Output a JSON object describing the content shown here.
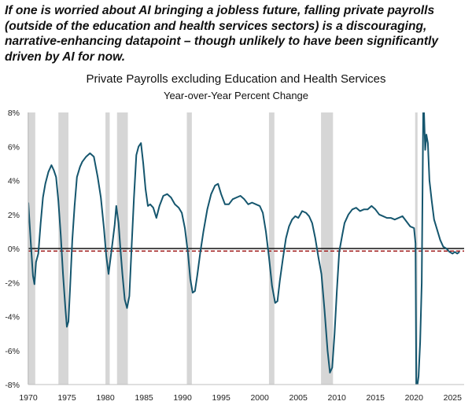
{
  "headline": "If one is worried about AI bringing a jobless future, falling private payrolls (outside of the education and health services sectors) is a discouraging, narrative-enhancing datapoint – though unlikely to have been significantly driven by AI for now.",
  "chart_data": {
    "type": "line",
    "title": "Private Payrolls excluding Education and Health Services",
    "subtitle": "Year-over-Year Percent Change",
    "xlabel": "",
    "ylabel": "",
    "xlim": [
      1970,
      2026.5
    ],
    "ylim": [
      -8,
      8
    ],
    "yticks": [
      8,
      6,
      4,
      2,
      0,
      -2,
      -4,
      -6,
      -8
    ],
    "ytick_labels": [
      "8%",
      "6%",
      "4%",
      "2%",
      "0%",
      "-2%",
      "-4%",
      "-6%",
      "-8%"
    ],
    "xticks": [
      1970,
      1975,
      1980,
      1985,
      1990,
      1995,
      2000,
      2005,
      2010,
      2015,
      2020,
      2025
    ],
    "xtick_labels": [
      "1970",
      "1975",
      "1980",
      "1985",
      "1990",
      "1995",
      "2000",
      "2005",
      "2010",
      "2015",
      "2020",
      "2025"
    ],
    "recessions": [
      [
        1969.9,
        1970.9
      ],
      [
        1973.9,
        1975.2
      ],
      [
        1980.0,
        1980.55
      ],
      [
        1981.5,
        1982.9
      ],
      [
        1990.55,
        1991.2
      ],
      [
        2001.2,
        2001.9
      ],
      [
        2007.95,
        2009.5
      ],
      [
        2020.15,
        2020.4
      ]
    ],
    "reference_line": {
      "y": -0.15,
      "style": "dashed",
      "color": "#a01c1c"
    },
    "series": [
      {
        "name": "Private payrolls ex education & health services, YoY %",
        "color": "#15566e",
        "x": [
          1970.0,
          1970.3,
          1970.6,
          1970.8,
          1971.0,
          1971.3,
          1971.6,
          1971.9,
          1972.2,
          1972.6,
          1973.0,
          1973.3,
          1973.6,
          1973.9,
          1974.2,
          1974.5,
          1974.8,
          1975.0,
          1975.2,
          1975.4,
          1975.7,
          1976.0,
          1976.3,
          1976.7,
          1977.0,
          1977.5,
          1978.0,
          1978.5,
          1979.0,
          1979.4,
          1979.8,
          1980.1,
          1980.4,
          1980.6,
          1980.9,
          1981.2,
          1981.4,
          1981.7,
          1981.9,
          1982.2,
          1982.5,
          1982.8,
          1983.1,
          1983.4,
          1983.7,
          1984.0,
          1984.3,
          1984.6,
          1984.9,
          1985.2,
          1985.5,
          1985.8,
          1986.2,
          1986.6,
          1987.0,
          1987.5,
          1988.0,
          1988.5,
          1989.0,
          1989.5,
          1989.9,
          1990.3,
          1990.7,
          1991.0,
          1991.3,
          1991.6,
          1991.9,
          1992.3,
          1992.7,
          1993.2,
          1993.7,
          1994.2,
          1994.6,
          1995.0,
          1995.5,
          1996.0,
          1996.5,
          1997.0,
          1997.5,
          1998.0,
          1998.5,
          1999.0,
          1999.5,
          2000.0,
          2000.4,
          2000.8,
          2001.2,
          2001.6,
          2002.0,
          2002.3,
          2002.6,
          2003.0,
          2003.4,
          2003.8,
          2004.2,
          2004.6,
          2005.0,
          2005.5,
          2006.0,
          2006.4,
          2006.8,
          2007.2,
          2007.6,
          2008.0,
          2008.4,
          2008.8,
          2009.1,
          2009.4,
          2009.7,
          2010.0,
          2010.3,
          2010.7,
          2011.0,
          2011.5,
          2012.0,
          2012.5,
          2013.0,
          2013.5,
          2014.0,
          2014.5,
          2015.0,
          2015.5,
          2016.0,
          2016.5,
          2017.0,
          2017.5,
          2018.0,
          2018.5,
          2019.0,
          2019.5,
          2020.0,
          2020.2,
          2020.3,
          2020.45,
          2020.6,
          2020.8,
          2021.0,
          2021.2,
          2021.3,
          2021.45,
          2021.6,
          2021.8,
          2022.0,
          2022.3,
          2022.6,
          2023.0,
          2023.4,
          2023.8,
          2024.2,
          2024.6,
          2025.0,
          2025.3,
          2025.6,
          2025.9
        ],
        "values": [
          2.7,
          0.5,
          -1.6,
          -2.1,
          -0.8,
          -0.3,
          1.5,
          3.0,
          3.8,
          4.5,
          4.9,
          4.6,
          4.2,
          2.8,
          0.8,
          -1.5,
          -3.5,
          -4.6,
          -4.3,
          -2.5,
          0.5,
          2.5,
          4.2,
          4.8,
          5.1,
          5.4,
          5.6,
          5.4,
          4.2,
          3.0,
          1.2,
          -0.4,
          -1.5,
          -0.8,
          0.3,
          1.4,
          2.5,
          1.5,
          0.2,
          -1.5,
          -3.0,
          -3.5,
          -2.8,
          0.2,
          3.0,
          5.5,
          6.0,
          6.2,
          5.0,
          3.5,
          2.5,
          2.6,
          2.4,
          1.8,
          2.5,
          3.1,
          3.2,
          3.0,
          2.6,
          2.4,
          2.1,
          1.2,
          -0.3,
          -1.8,
          -2.6,
          -2.5,
          -1.6,
          -0.2,
          1.0,
          2.3,
          3.2,
          3.7,
          3.8,
          3.2,
          2.6,
          2.6,
          2.9,
          3.0,
          3.1,
          2.9,
          2.6,
          2.7,
          2.6,
          2.5,
          2.1,
          1.0,
          -0.5,
          -2.2,
          -3.2,
          -3.1,
          -1.9,
          -0.6,
          0.6,
          1.3,
          1.7,
          1.9,
          1.8,
          2.2,
          2.1,
          1.9,
          1.5,
          0.6,
          -0.5,
          -1.5,
          -3.6,
          -6.0,
          -7.3,
          -7.0,
          -5.0,
          -2.5,
          -0.2,
          0.8,
          1.5,
          2.0,
          2.3,
          2.4,
          2.2,
          2.3,
          2.3,
          2.5,
          2.3,
          2.0,
          1.9,
          1.8,
          1.8,
          1.7,
          1.8,
          1.9,
          1.6,
          1.3,
          1.2,
          0.3,
          -8.0,
          -8.0,
          -7.5,
          -5.5,
          -2.0,
          8.0,
          8.0,
          5.8,
          6.7,
          6.2,
          4.0,
          2.8,
          1.7,
          1.1,
          0.5,
          0.1,
          0.0,
          -0.2,
          -0.3,
          -0.2,
          -0.3,
          -0.2
        ]
      }
    ]
  }
}
